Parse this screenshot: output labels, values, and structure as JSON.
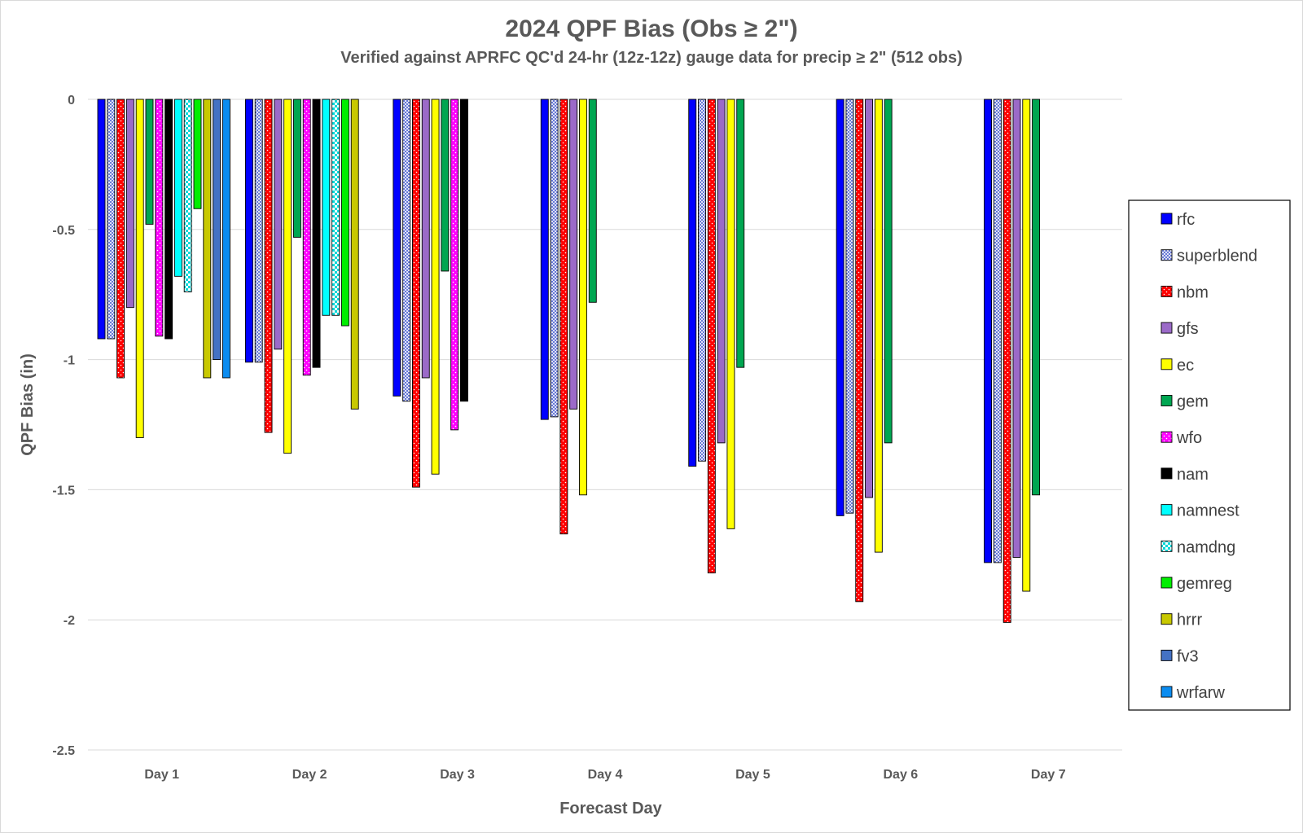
{
  "chart_data": {
    "type": "bar",
    "title": "2024 QPF Bias (Obs ≥ 2\")",
    "subtitle": "Verified against APRFC QC'd 24-hr (12z-12z) gauge data for precip ≥ 2\" (512 obs)",
    "xlabel": "Forecast Day",
    "ylabel": "QPF Bias (in)",
    "ylim": [
      -2.5,
      0
    ],
    "yticks": [
      "0",
      "-0.5",
      "-1",
      "-1.5",
      "-2",
      "-2.5"
    ],
    "ytick_values": [
      0,
      -0.5,
      -1,
      -1.5,
      -2,
      -2.5
    ],
    "grid": true,
    "legend_position": "right",
    "categories": [
      "Day 1",
      "Day 2",
      "Day 3",
      "Day 4",
      "Day 5",
      "Day 6",
      "Day 7"
    ],
    "series": [
      {
        "name": "rfc",
        "color": "#0000ff",
        "pattern": "solid",
        "values": [
          -0.92,
          -1.01,
          -1.14,
          -1.23,
          -1.41,
          -1.6,
          -1.78
        ]
      },
      {
        "name": "superblend",
        "color": "#c8d0f0",
        "pattern": "crosshatch",
        "values": [
          -0.92,
          -1.01,
          -1.16,
          -1.22,
          -1.39,
          -1.59,
          -1.78
        ]
      },
      {
        "name": "nbm",
        "color": "#ff0000",
        "pattern": "dots",
        "values": [
          -1.07,
          -1.28,
          -1.49,
          -1.67,
          -1.82,
          -1.93,
          -2.01
        ]
      },
      {
        "name": "gfs",
        "color": "#9b6ac8",
        "pattern": "solid",
        "values": [
          -0.8,
          -0.96,
          -1.07,
          -1.19,
          -1.32,
          -1.53,
          -1.76
        ]
      },
      {
        "name": "ec",
        "color": "#ffff00",
        "pattern": "solid",
        "values": [
          -1.3,
          -1.36,
          -1.44,
          -1.52,
          -1.65,
          -1.74,
          -1.89
        ]
      },
      {
        "name": "gem",
        "color": "#00a651",
        "pattern": "solid",
        "values": [
          -0.48,
          -0.53,
          -0.66,
          -0.78,
          -1.03,
          -1.32,
          -1.52
        ]
      },
      {
        "name": "wfo",
        "color": "#ff00ff",
        "pattern": "dots",
        "values": [
          -0.91,
          -1.06,
          -1.27,
          null,
          null,
          null,
          null
        ]
      },
      {
        "name": "nam",
        "color": "#000000",
        "pattern": "solid",
        "values": [
          -0.92,
          -1.03,
          -1.16,
          null,
          null,
          null,
          null
        ]
      },
      {
        "name": "namnest",
        "color": "#00ffff",
        "pattern": "solid",
        "values": [
          -0.68,
          -0.83,
          null,
          null,
          null,
          null,
          null
        ]
      },
      {
        "name": "namdng",
        "color": "#00e5e5",
        "pattern": "checker",
        "values": [
          -0.74,
          -0.83,
          null,
          null,
          null,
          null,
          null
        ]
      },
      {
        "name": "gemreg",
        "color": "#00ee00",
        "pattern": "solid",
        "values": [
          -0.42,
          -0.87,
          null,
          null,
          null,
          null,
          null
        ]
      },
      {
        "name": "hrrr",
        "color": "#c8c800",
        "pattern": "solid",
        "values": [
          -1.07,
          -1.19,
          null,
          null,
          null,
          null,
          null
        ]
      },
      {
        "name": "fv3",
        "color": "#4472c4",
        "pattern": "solid",
        "values": [
          -1.0,
          null,
          null,
          null,
          null,
          null,
          null
        ]
      },
      {
        "name": "wrfarw",
        "color": "#0b8cf0",
        "pattern": "solid",
        "values": [
          -1.07,
          null,
          null,
          null,
          null,
          null,
          null
        ]
      }
    ]
  }
}
